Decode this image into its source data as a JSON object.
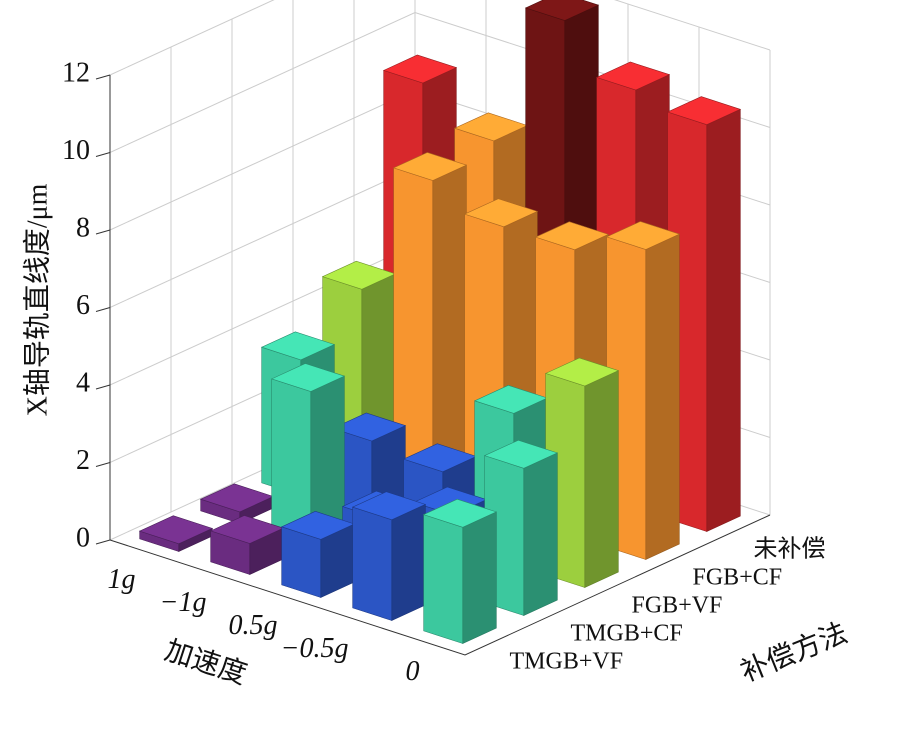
{
  "chart_data": {
    "type": "bar3d",
    "zlabel": "X轴导轨直线度/μm",
    "xlabel": "加速度",
    "ylabel": "补偿方法",
    "x_categories": [
      "1g",
      "−1g",
      "0.5g",
      "−0.5g",
      "0"
    ],
    "y_categories": [
      "未补偿",
      "FGB+CF",
      "FGB+VF",
      "TMGB+CF",
      "TMGB+VF"
    ],
    "values": [
      [
        9.2,
        8.3,
        12.0,
        10.8,
        10.5
      ],
      [
        4.6,
        8.0,
        7.4,
        7.4,
        8.0
      ],
      [
        3.5,
        2.0,
        1.8,
        3.9,
        5.2
      ],
      [
        0.3,
        4.0,
        1.3,
        2.0,
        3.8
      ],
      [
        0.2,
        0.8,
        1.5,
        2.6,
        3.0
      ]
    ],
    "zlim": [
      0,
      12
    ],
    "zticks": [
      0,
      2,
      4,
      6,
      8,
      10,
      12
    ],
    "grid": true
  }
}
